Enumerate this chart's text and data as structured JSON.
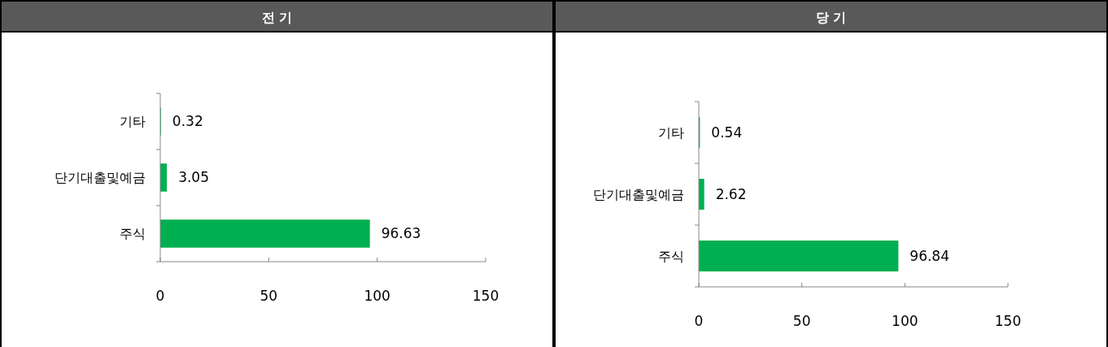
{
  "chart_data": [
    {
      "type": "bar",
      "title": "전 기",
      "orientation": "horizontal",
      "categories": [
        "기타",
        "단기대출및예금",
        "주식"
      ],
      "values": [
        0.32,
        3.05,
        96.63
      ],
      "color": "#00b050",
      "xlim": [
        0,
        150
      ],
      "xticks": [
        0,
        50,
        100,
        150
      ],
      "data_labels": true
    },
    {
      "type": "bar",
      "title": "당 기",
      "orientation": "horizontal",
      "categories": [
        "기타",
        "단기대출및예금",
        "주식"
      ],
      "values": [
        0.54,
        2.62,
        96.84
      ],
      "color": "#00b050",
      "xlim": [
        0,
        150
      ],
      "xticks": [
        0,
        50,
        100,
        150
      ],
      "data_labels": true
    }
  ]
}
